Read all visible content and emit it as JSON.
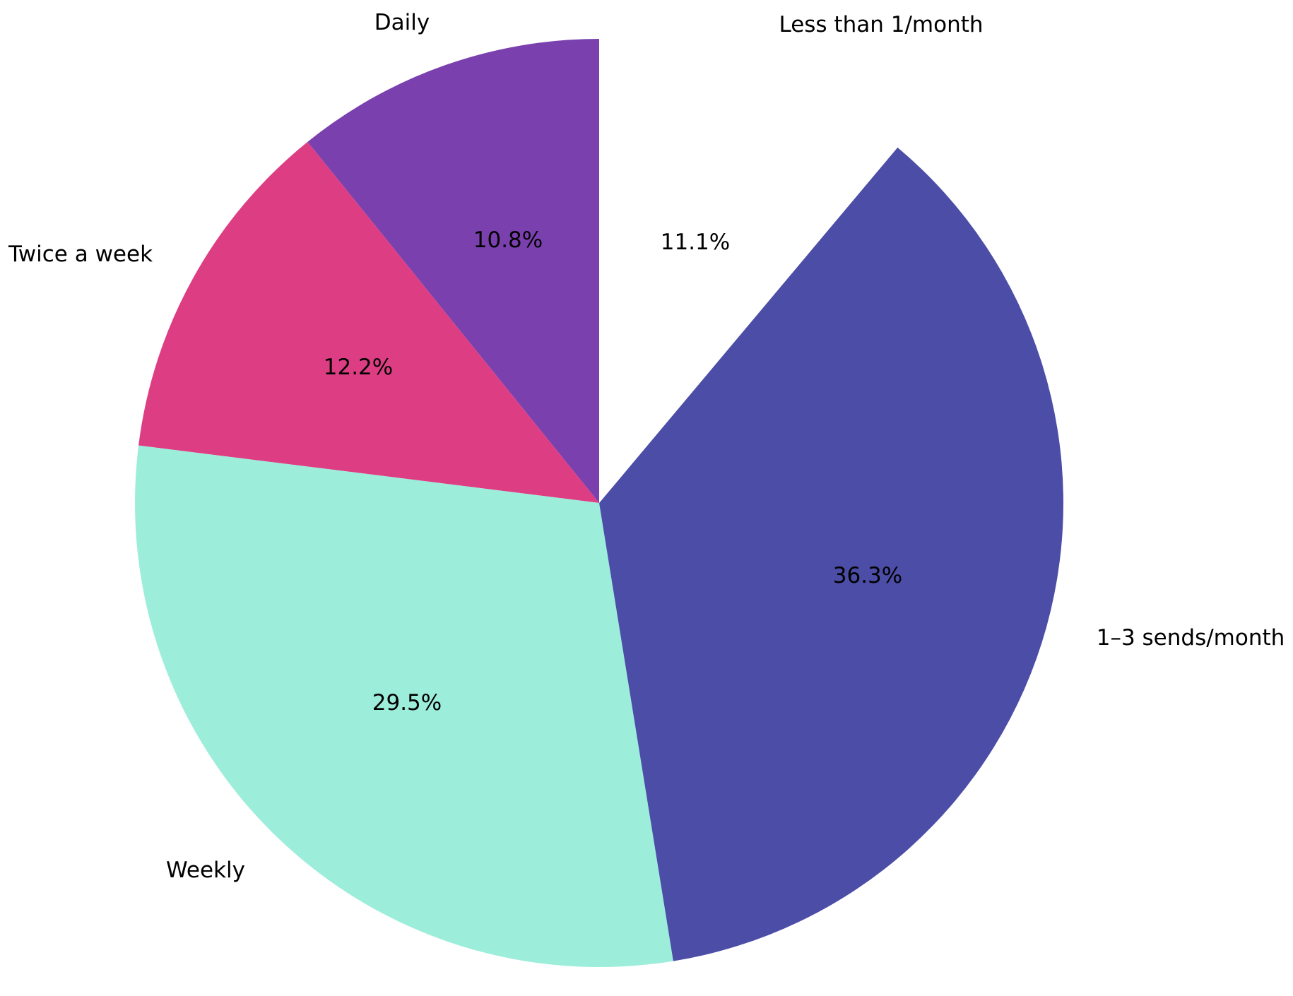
{
  "chart_data": {
    "type": "pie",
    "title": "",
    "start_angle": 90,
    "counterclock": true,
    "categories": [
      "Daily",
      "Twice a week",
      "Weekly",
      "1–3 sends/month",
      "Less than 1/month"
    ],
    "values": [
      10.8,
      12.2,
      29.5,
      36.3,
      11.1
    ],
    "value_labels": [
      "10.8%",
      "12.2%",
      "29.5%",
      "36.3%",
      "11.1%"
    ],
    "colors": [
      "#7A40AE",
      "#DD3E83",
      "#9DEDDB",
      "#4B4DA7",
      "#FFFFFF"
    ],
    "legend": "none",
    "slices": [
      {
        "label": "Daily",
        "pct": "10.8%"
      },
      {
        "label": "Twice a week",
        "pct": "12.2%"
      },
      {
        "label": "Weekly",
        "pct": "29.5%"
      },
      {
        "label": "1–3 sends/month",
        "pct": "36.3%"
      },
      {
        "label": "Less than 1/month",
        "pct": "11.1%"
      }
    ]
  }
}
